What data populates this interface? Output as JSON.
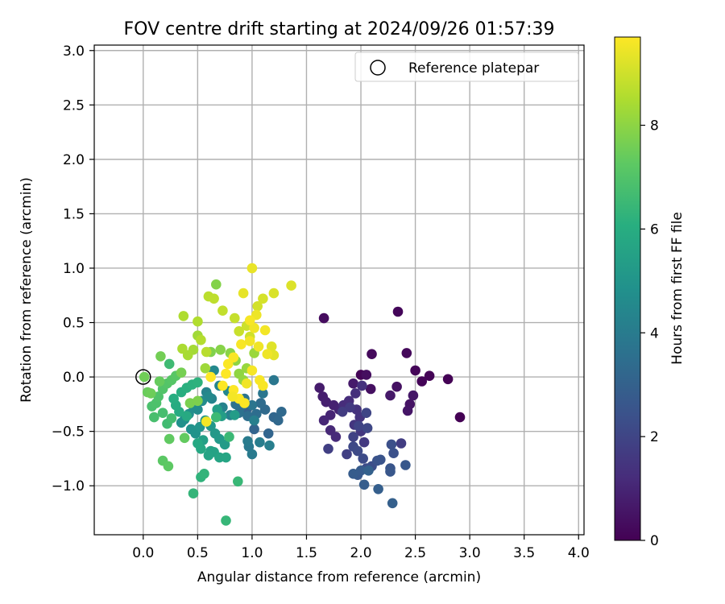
{
  "chart_data": {
    "type": "scatter",
    "title": "FOV centre drift starting at 2024/09/26 01:57:39",
    "xlabel": "Angular distance from reference (arcmin)",
    "ylabel": "Rotation from reference (arcmin)",
    "xlim": [
      -0.45,
      4.05
    ],
    "ylim": [
      -1.45,
      3.05
    ],
    "xticks": [
      0.0,
      0.5,
      1.0,
      1.5,
      2.0,
      2.5,
      3.0,
      3.5,
      4.0
    ],
    "xtick_labels": [
      "0.0",
      "0.5",
      "1.0",
      "1.5",
      "2.0",
      "2.5",
      "3.0",
      "3.5",
      "4.0"
    ],
    "yticks": [
      -1.0,
      -0.5,
      0.0,
      0.5,
      1.0,
      1.5,
      2.0,
      2.5,
      3.0
    ],
    "ytick_labels": [
      "−1.0",
      "−0.5",
      "0.0",
      "0.5",
      "1.0",
      "1.5",
      "2.0",
      "2.5",
      "3.0"
    ],
    "grid": true,
    "legend": {
      "placement": "top-right",
      "entries": [
        {
          "label": "Reference platepar",
          "marker": "open-circle"
        }
      ]
    },
    "reference": {
      "x": 0.0,
      "y": 0.0
    },
    "colorbar": {
      "label": "Hours from first FF file",
      "colormap": "viridis",
      "range": [
        0,
        9.7
      ],
      "ticks": [
        0,
        2,
        4,
        6,
        8
      ],
      "tick_labels": [
        "0",
        "2",
        "4",
        "6",
        "8"
      ]
    },
    "points": [
      [
        2.34,
        0.6,
        0.15
      ],
      [
        2.0,
        0.02,
        0.1
      ],
      [
        2.63,
        0.01,
        0.05
      ],
      [
        2.8,
        -0.02,
        0.02
      ],
      [
        2.91,
        -0.37,
        0.01
      ],
      [
        2.56,
        -0.04,
        0.08
      ],
      [
        2.5,
        0.06,
        0.12
      ],
      [
        2.42,
        0.22,
        0.18
      ],
      [
        2.1,
        0.21,
        0.25
      ],
      [
        1.66,
        0.54,
        0.3
      ],
      [
        2.05,
        0.02,
        0.35
      ],
      [
        2.09,
        -0.11,
        0.4
      ],
      [
        2.33,
        -0.09,
        0.45
      ],
      [
        2.45,
        -0.25,
        0.5
      ],
      [
        2.43,
        -0.31,
        0.55
      ],
      [
        2.48,
        -0.17,
        0.6
      ],
      [
        2.27,
        -0.17,
        0.65
      ],
      [
        1.93,
        -0.06,
        0.7
      ],
      [
        1.62,
        -0.1,
        0.75
      ],
      [
        1.65,
        -0.18,
        0.8
      ],
      [
        1.68,
        -0.23,
        0.85
      ],
      [
        1.75,
        -0.26,
        0.9
      ],
      [
        1.8,
        -0.3,
        0.95
      ],
      [
        1.72,
        -0.35,
        1.0
      ],
      [
        1.66,
        -0.4,
        1.05
      ],
      [
        1.72,
        -0.49,
        1.1
      ],
      [
        1.77,
        -0.55,
        1.15
      ],
      [
        1.84,
        -0.26,
        1.2
      ],
      [
        1.89,
        -0.22,
        1.25
      ],
      [
        1.95,
        -0.15,
        1.3
      ],
      [
        2.01,
        -0.08,
        1.35
      ],
      [
        1.96,
        -0.3,
        1.4
      ],
      [
        1.99,
        -0.37,
        1.45
      ],
      [
        1.94,
        -0.44,
        1.5
      ],
      [
        2.0,
        -0.5,
        1.55
      ],
      [
        2.03,
        -0.6,
        1.6
      ],
      [
        1.9,
        -0.28,
        1.65
      ],
      [
        1.83,
        -0.32,
        1.7
      ],
      [
        2.37,
        -0.61,
        1.75
      ],
      [
        1.7,
        -0.66,
        1.8
      ],
      [
        1.87,
        -0.71,
        1.85
      ],
      [
        1.93,
        -0.55,
        1.9
      ],
      [
        1.98,
        -0.45,
        1.95
      ],
      [
        2.05,
        -0.33,
        2.0
      ],
      [
        2.06,
        -0.47,
        2.05
      ],
      [
        1.93,
        -0.64,
        2.1
      ],
      [
        1.97,
        -0.68,
        2.15
      ],
      [
        2.02,
        -0.75,
        2.2
      ],
      [
        2.05,
        -0.84,
        2.25
      ],
      [
        2.1,
        -0.82,
        2.3
      ],
      [
        2.28,
        -0.62,
        2.35
      ],
      [
        2.3,
        -0.7,
        2.4
      ],
      [
        2.15,
        -0.77,
        2.45
      ],
      [
        2.18,
        -0.76,
        2.5
      ],
      [
        2.27,
        -0.84,
        2.55
      ],
      [
        2.27,
        -0.87,
        2.6
      ],
      [
        2.41,
        -0.81,
        2.65
      ],
      [
        1.97,
        -0.9,
        2.7
      ],
      [
        2.0,
        -0.86,
        2.75
      ],
      [
        1.93,
        -0.89,
        2.8
      ],
      [
        2.03,
        -0.99,
        2.85
      ],
      [
        2.16,
        -1.03,
        2.9
      ],
      [
        2.29,
        -1.16,
        2.95
      ],
      [
        2.07,
        -0.86,
        3.0
      ],
      [
        0.95,
        -0.3,
        3.05
      ],
      [
        1.02,
        -0.48,
        3.1
      ],
      [
        1.15,
        -0.52,
        3.15
      ],
      [
        1.2,
        -0.37,
        3.2
      ],
      [
        1.24,
        -0.4,
        3.25
      ],
      [
        1.27,
        -0.32,
        3.3
      ],
      [
        1.12,
        -0.3,
        3.35
      ],
      [
        1.08,
        -0.24,
        3.4
      ],
      [
        1.04,
        -0.34,
        3.45
      ],
      [
        0.96,
        -0.36,
        3.5
      ],
      [
        0.9,
        -0.27,
        3.55
      ],
      [
        0.88,
        -0.33,
        3.6
      ],
      [
        0.85,
        -0.25,
        3.65
      ],
      [
        0.93,
        -0.2,
        3.7
      ],
      [
        1.0,
        -0.26,
        3.75
      ],
      [
        1.1,
        -0.15,
        3.8
      ],
      [
        1.2,
        -0.03,
        3.85
      ],
      [
        0.97,
        -0.64,
        3.9
      ],
      [
        1.0,
        -0.71,
        3.95
      ],
      [
        0.96,
        -0.59,
        4.0
      ],
      [
        1.07,
        -0.6,
        4.05
      ],
      [
        1.16,
        -0.63,
        4.1
      ],
      [
        1.02,
        -0.4,
        4.15
      ],
      [
        0.8,
        -0.35,
        4.2
      ],
      [
        0.73,
        -0.28,
        4.25
      ],
      [
        0.63,
        -0.2,
        4.3
      ],
      [
        0.58,
        -0.14,
        4.35
      ],
      [
        0.7,
        -0.08,
        4.4
      ],
      [
        0.78,
        -0.13,
        4.45
      ],
      [
        0.65,
        0.06,
        4.5
      ],
      [
        0.6,
        -0.18,
        4.55
      ],
      [
        0.54,
        -0.22,
        4.6
      ],
      [
        0.5,
        -0.3,
        4.65
      ],
      [
        0.46,
        -0.27,
        4.7
      ],
      [
        0.42,
        -0.34,
        4.75
      ],
      [
        0.38,
        -0.39,
        4.8
      ],
      [
        0.35,
        -0.42,
        4.85
      ],
      [
        0.44,
        -0.48,
        4.9
      ],
      [
        0.48,
        -0.52,
        4.95
      ],
      [
        0.52,
        -0.46,
        5.0
      ],
      [
        0.57,
        -0.4,
        5.05
      ],
      [
        0.62,
        -0.45,
        5.1
      ],
      [
        0.66,
        -0.52,
        5.15
      ],
      [
        0.7,
        -0.57,
        5.2
      ],
      [
        0.75,
        -0.62,
        5.25
      ],
      [
        0.84,
        -0.35,
        5.3
      ],
      [
        0.72,
        -0.36,
        5.35
      ],
      [
        0.68,
        -0.3,
        5.4
      ],
      [
        0.55,
        -0.58,
        5.45
      ],
      [
        0.62,
        -0.68,
        5.5
      ],
      [
        0.65,
        -0.69,
        5.55
      ],
      [
        0.6,
        -0.72,
        5.6
      ],
      [
        0.7,
        -0.74,
        5.65
      ],
      [
        0.76,
        -0.74,
        5.7
      ],
      [
        0.53,
        -0.66,
        5.75
      ],
      [
        0.5,
        -0.61,
        5.8
      ],
      [
        0.4,
        -0.36,
        5.85
      ],
      [
        0.33,
        -0.32,
        5.9
      ],
      [
        0.3,
        -0.26,
        5.95
      ],
      [
        0.28,
        -0.2,
        6.0
      ],
      [
        0.35,
        -0.14,
        6.05
      ],
      [
        0.4,
        -0.1,
        6.1
      ],
      [
        0.45,
        -0.07,
        6.15
      ],
      [
        0.5,
        -0.05,
        6.2
      ],
      [
        0.53,
        -0.92,
        6.25
      ],
      [
        0.56,
        -0.89,
        6.3
      ],
      [
        0.46,
        -1.07,
        6.35
      ],
      [
        0.76,
        -1.32,
        6.4
      ],
      [
        0.87,
        -0.96,
        6.45
      ],
      [
        0.79,
        -0.55,
        6.5
      ],
      [
        0.67,
        -0.37,
        6.55
      ],
      [
        0.24,
        0.12,
        6.6
      ],
      [
        0.22,
        -0.43,
        6.65
      ],
      [
        0.26,
        -0.38,
        6.7
      ],
      [
        0.18,
        -0.33,
        6.75
      ],
      [
        0.1,
        -0.37,
        6.8
      ],
      [
        0.08,
        -0.27,
        6.85
      ],
      [
        0.12,
        -0.24,
        6.9
      ],
      [
        0.14,
        -0.18,
        6.95
      ],
      [
        0.18,
        -0.11,
        7.0
      ],
      [
        0.22,
        -0.06,
        7.05
      ],
      [
        0.26,
        -0.03,
        7.1
      ],
      [
        0.3,
        0.01,
        7.15
      ],
      [
        0.18,
        -0.77,
        7.2
      ],
      [
        0.23,
        -0.82,
        7.25
      ],
      [
        0.24,
        -0.57,
        7.3
      ],
      [
        0.38,
        -0.56,
        7.35
      ],
      [
        0.15,
        -0.04,
        7.4
      ],
      [
        0.04,
        -0.14,
        7.45
      ],
      [
        0.07,
        -0.15,
        7.5
      ],
      [
        0.01,
        0.0,
        7.55
      ],
      [
        0.16,
        0.19,
        7.6
      ],
      [
        0.35,
        0.04,
        7.65
      ],
      [
        0.43,
        -0.24,
        7.7
      ],
      [
        0.5,
        -0.22,
        7.75
      ],
      [
        0.62,
        0.23,
        7.8
      ],
      [
        0.67,
        0.85,
        7.85
      ],
      [
        0.71,
        0.25,
        7.9
      ],
      [
        0.8,
        0.22,
        7.95
      ],
      [
        0.85,
        0.15,
        8.0
      ],
      [
        0.88,
        0.03,
        8.05
      ],
      [
        0.92,
        -0.03,
        8.1
      ],
      [
        0.95,
        0.08,
        8.15
      ],
      [
        1.02,
        0.22,
        8.2
      ],
      [
        0.57,
        0.08,
        8.25
      ],
      [
        0.5,
        0.38,
        8.3
      ],
      [
        0.46,
        0.25,
        8.35
      ],
      [
        0.41,
        0.2,
        8.4
      ],
      [
        0.36,
        0.26,
        8.45
      ],
      [
        0.37,
        0.56,
        8.5
      ],
      [
        0.5,
        0.51,
        8.55
      ],
      [
        0.53,
        0.34,
        8.6
      ],
      [
        0.58,
        0.23,
        8.65
      ],
      [
        0.6,
        0.74,
        8.7
      ],
      [
        0.65,
        0.72,
        8.75
      ],
      [
        0.73,
        0.61,
        8.8
      ],
      [
        0.84,
        0.54,
        8.85
      ],
      [
        0.88,
        0.42,
        8.9
      ],
      [
        0.95,
        0.47,
        8.95
      ],
      [
        0.98,
        0.37,
        9.0
      ],
      [
        1.05,
        0.65,
        9.05
      ],
      [
        1.1,
        0.72,
        9.1
      ],
      [
        1.2,
        0.77,
        9.15
      ],
      [
        1.36,
        0.84,
        9.2
      ],
      [
        1.18,
        0.28,
        9.25
      ],
      [
        1.2,
        0.2,
        9.3
      ],
      [
        0.92,
        0.77,
        9.35
      ],
      [
        1.0,
        1.0,
        9.4
      ],
      [
        1.04,
        0.57,
        9.45
      ],
      [
        1.02,
        0.45,
        9.5
      ],
      [
        1.12,
        0.43,
        9.55
      ],
      [
        0.98,
        0.52,
        9.6
      ],
      [
        0.9,
        0.3,
        9.62
      ],
      [
        0.83,
        0.18,
        9.64
      ],
      [
        0.78,
        0.12,
        9.66
      ],
      [
        0.76,
        0.03,
        9.68
      ],
      [
        0.62,
        0.0,
        9.7
      ],
      [
        0.73,
        -0.08,
        9.7
      ],
      [
        0.83,
        -0.12,
        9.69
      ],
      [
        0.88,
        -0.2,
        9.67
      ],
      [
        0.93,
        -0.24,
        9.65
      ],
      [
        1.1,
        -0.08,
        9.63
      ],
      [
        1.07,
        -0.03,
        9.61
      ],
      [
        1.0,
        0.06,
        9.59
      ],
      [
        0.82,
        -0.18,
        9.57
      ],
      [
        0.58,
        -0.41,
        9.55
      ],
      [
        0.98,
        0.33,
        9.53
      ],
      [
        0.95,
        -0.06,
        9.51
      ],
      [
        1.06,
        0.28,
        9.49
      ],
      [
        1.14,
        0.21,
        9.47
      ]
    ]
  }
}
